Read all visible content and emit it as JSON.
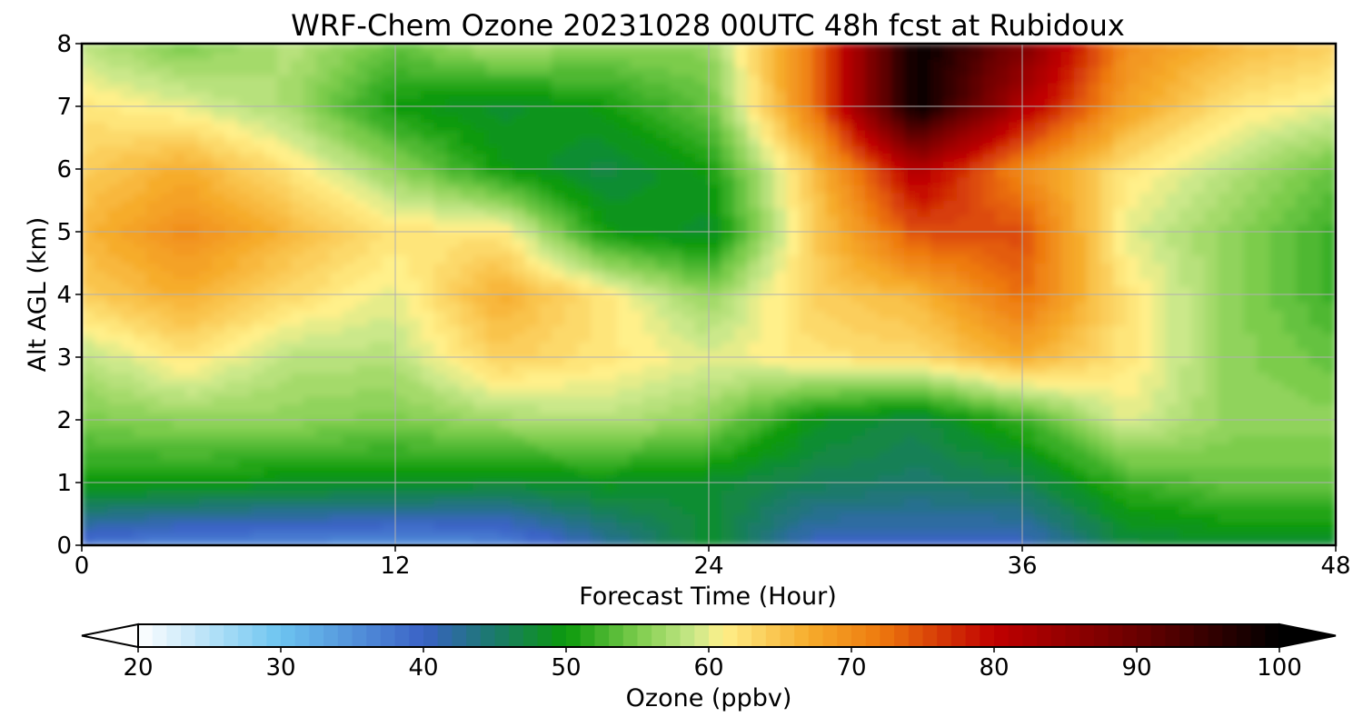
{
  "chart_data": {
    "type": "heatmap",
    "title": "WRF-Chem Ozone  20231028 00UTC 48h fcst at Rubidoux",
    "xlabel": "Forecast Time (Hour)",
    "ylabel": "Alt AGL (km)",
    "xlim": [
      0,
      48
    ],
    "ylim": [
      0,
      8
    ],
    "xticks": [
      0,
      12,
      24,
      36,
      48
    ],
    "yticks": [
      0,
      1,
      2,
      3,
      4,
      5,
      6,
      7,
      8
    ],
    "grid": true,
    "colorbar": {
      "label": "Ozone  (ppbv)",
      "ticks": [
        20,
        30,
        40,
        50,
        60,
        70,
        80,
        90,
        100
      ],
      "range": [
        20,
        100
      ],
      "extend": "both",
      "stops": [
        {
          "v": 20,
          "c": "#ffffff"
        },
        {
          "v": 30,
          "c": "#6cc4f0"
        },
        {
          "v": 40,
          "c": "#3a62c6"
        },
        {
          "v": 45,
          "c": "#1a7a6a"
        },
        {
          "v": 50,
          "c": "#0b9a0b"
        },
        {
          "v": 55,
          "c": "#7ccc4c"
        },
        {
          "v": 59,
          "c": "#cbe88a"
        },
        {
          "v": 61,
          "c": "#fff08a"
        },
        {
          "v": 67,
          "c": "#f6ac2c"
        },
        {
          "v": 72,
          "c": "#ee7a0e"
        },
        {
          "v": 80,
          "c": "#c00000"
        },
        {
          "v": 90,
          "c": "#6a0000"
        },
        {
          "v": 100,
          "c": "#000000"
        }
      ]
    },
    "x_hours": [
      0,
      4,
      8,
      12,
      16,
      20,
      24,
      28,
      32,
      36,
      40,
      44,
      48
    ],
    "y_km": [
      0,
      1,
      2,
      3,
      4,
      5,
      6,
      7,
      8
    ],
    "z_ppbv": [
      [
        38,
        36,
        36,
        35,
        36,
        42,
        48,
        40,
        40,
        40,
        47,
        48,
        48
      ],
      [
        50,
        50,
        49,
        49,
        48,
        49,
        48,
        46,
        45,
        46,
        52,
        54,
        54
      ],
      [
        55,
        56,
        56,
        55,
        57,
        58,
        56,
        49,
        47,
        52,
        60,
        56,
        56
      ],
      [
        58,
        62,
        58,
        58,
        64,
        62,
        60,
        62,
        63,
        67,
        62,
        56,
        54
      ],
      [
        64,
        67,
        63,
        60,
        67,
        62,
        56,
        64,
        66,
        73,
        62,
        56,
        52
      ],
      [
        66,
        70,
        66,
        62,
        62,
        50,
        48,
        64,
        75,
        75,
        60,
        56,
        52
      ],
      [
        64,
        67,
        62,
        56,
        50,
        47,
        50,
        65,
        82,
        70,
        62,
        58,
        54
      ],
      [
        62,
        60,
        57,
        50,
        48,
        50,
        54,
        72,
        100,
        82,
        68,
        62,
        60
      ],
      [
        58,
        55,
        58,
        54,
        58,
        56,
        56,
        72,
        100,
        88,
        70,
        66,
        64
      ]
    ]
  }
}
